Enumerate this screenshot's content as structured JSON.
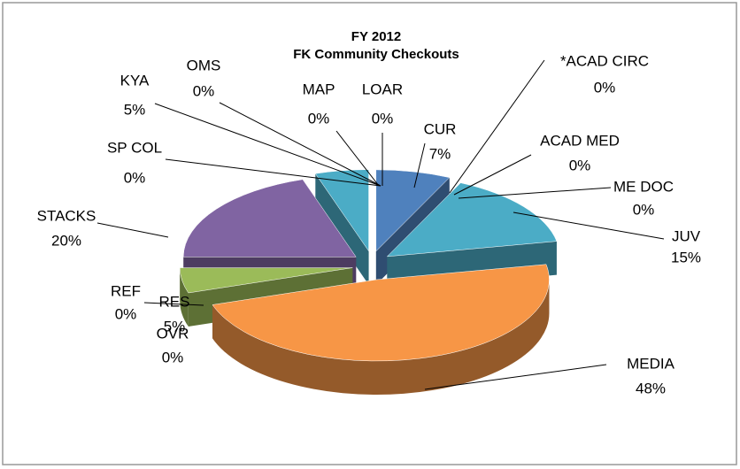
{
  "chart_data": {
    "type": "pie",
    "title": "FY 2012",
    "subtitle": "FK Community Checkouts",
    "categories": [
      "CUR",
      "*ACAD CIRC",
      "ACAD MED",
      "ME DOC",
      "JUV",
      "MEDIA",
      "OVR",
      "REF",
      "RES",
      "STACKS",
      "SP COL",
      "KYA",
      "OMS",
      "MAP",
      "LOAR"
    ],
    "values": [
      7,
      0,
      0,
      0,
      15,
      48,
      0,
      0,
      5,
      20,
      0,
      5,
      0,
      0,
      0
    ],
    "value_labels": [
      "7%",
      "0%",
      "0%",
      "0%",
      "15%",
      "48%",
      "0%",
      "0%",
      "5%",
      "20%",
      "0%",
      "5%",
      "0%",
      "0%",
      "0%"
    ],
    "colors": [
      "#4f81bd",
      "#c0504d",
      "#9bbb59",
      "#8064a2",
      "#4bacc6",
      "#f79646",
      "#2c4d75",
      "#772c2a",
      "#9bbb59",
      "#8064a2",
      "#276a7c",
      "#4bacc6",
      "#b65708",
      "#4f81bd",
      "#c0504d"
    ]
  }
}
